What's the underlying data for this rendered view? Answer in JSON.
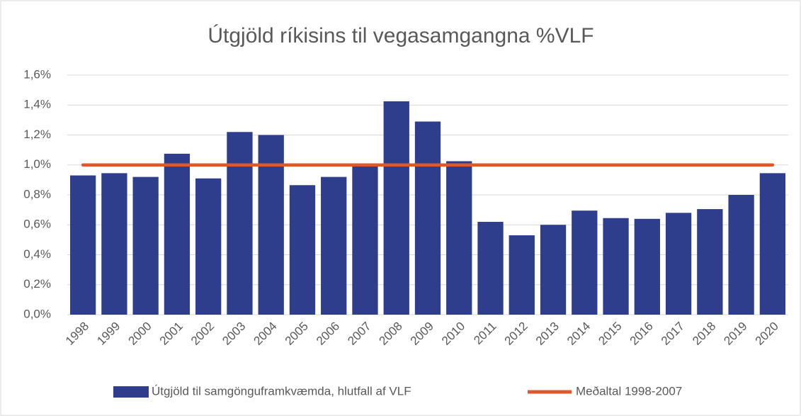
{
  "chart_data": {
    "type": "combo",
    "title": "Útgjöld ríkisins til vegasamgangna %VLF",
    "categories": [
      "1998",
      "1999",
      "2000",
      "2001",
      "2002",
      "2003",
      "2004",
      "2005",
      "2006",
      "2007",
      "2008",
      "2009",
      "2010",
      "2011",
      "2012",
      "2013",
      "2014",
      "2015",
      "2016",
      "2017",
      "2018",
      "2019",
      "2020"
    ],
    "series": [
      {
        "name": "Útgjöld til samgönguframkvæmda, hlutfall af VLF",
        "type": "bar",
        "color": "#2e3d8c",
        "values": [
          0.93,
          0.945,
          0.92,
          1.075,
          0.91,
          1.22,
          1.2,
          0.865,
          0.92,
          1.0,
          1.425,
          1.29,
          1.025,
          0.62,
          0.53,
          0.6,
          0.695,
          0.645,
          0.64,
          0.68,
          0.705,
          0.8,
          0.945
        ]
      },
      {
        "name": "Meðaltal 1998-2007",
        "type": "line",
        "color": "#e0582a",
        "values": [
          1.0,
          1.0,
          1.0,
          1.0,
          1.0,
          1.0,
          1.0,
          1.0,
          1.0,
          1.0,
          1.0,
          1.0,
          1.0,
          1.0,
          1.0,
          1.0,
          1.0,
          1.0,
          1.0,
          1.0,
          1.0,
          1.0,
          1.0
        ]
      }
    ],
    "ylim": [
      0,
      1.6
    ],
    "yticks": [
      {
        "value": 0,
        "label": "0,0%"
      },
      {
        "value": 0.2,
        "label": "0,2%"
      },
      {
        "value": 0.4,
        "label": "0,4%"
      },
      {
        "value": 0.6,
        "label": "0,6%"
      },
      {
        "value": 0.8,
        "label": "0,8%"
      },
      {
        "value": 1.0,
        "label": "1,0%"
      },
      {
        "value": 1.2,
        "label": "1,2%"
      },
      {
        "value": 1.4,
        "label": "1,4%"
      },
      {
        "value": 1.6,
        "label": "1,6%"
      }
    ],
    "grid": true,
    "legend": "bottom"
  }
}
